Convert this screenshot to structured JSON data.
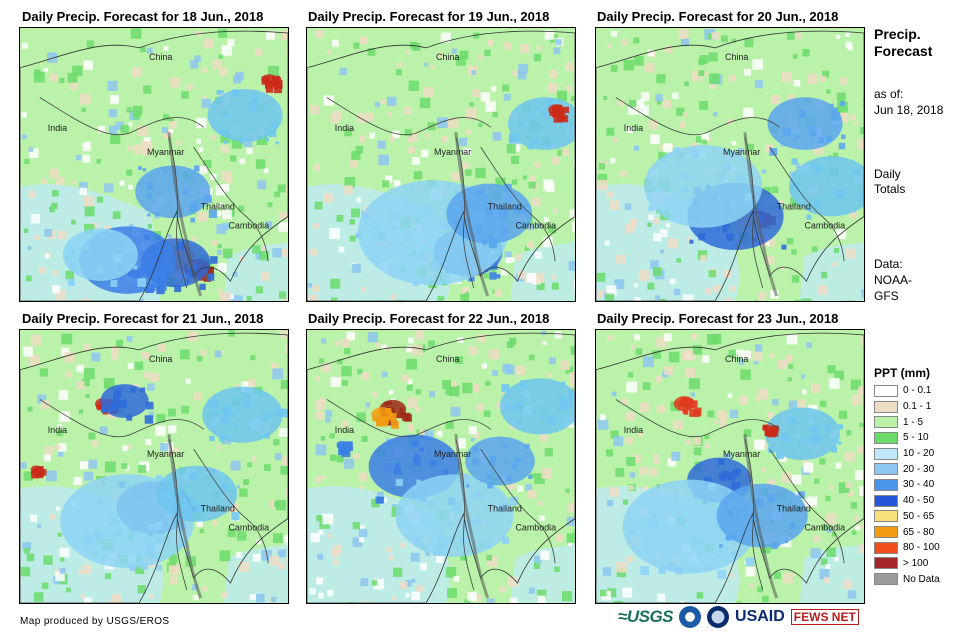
{
  "panels": [
    {
      "title": "Daily Precip. Forecast for 18 Jun., 2018",
      "blobs": [
        [
          0.66,
          0.88,
          "#a02a18",
          0.05
        ],
        [
          0.6,
          0.83,
          "#f39c12",
          0.05
        ],
        [
          0.58,
          0.86,
          "#2f6bd8",
          0.13
        ],
        [
          0.4,
          0.85,
          "#3c7fe6",
          0.18
        ],
        [
          0.3,
          0.83,
          "#8dd3f5",
          0.14
        ],
        [
          0.57,
          0.6,
          "#5aa6ee",
          0.14
        ],
        [
          0.84,
          0.32,
          "#6fc6f0",
          0.14
        ],
        [
          0.93,
          0.19,
          "#cc2a1a",
          0.03
        ]
      ]
    },
    {
      "title": "Daily Precip. Forecast for 19 Jun., 2018",
      "blobs": [
        [
          0.62,
          0.86,
          "#e03b1f",
          0.04
        ],
        [
          0.6,
          0.82,
          "#3c7fe6",
          0.13
        ],
        [
          0.47,
          0.75,
          "#8dd3f5",
          0.28
        ],
        [
          0.68,
          0.68,
          "#5aa6ee",
          0.16
        ],
        [
          0.89,
          0.35,
          "#6fc6f0",
          0.14
        ],
        [
          0.93,
          0.3,
          "#cc2a1a",
          0.03
        ]
      ]
    },
    {
      "title": "Daily Precip. Forecast for 20 Jun., 2018",
      "blobs": [
        [
          0.61,
          0.69,
          "#a02a18",
          0.03
        ],
        [
          0.56,
          0.7,
          "#f3d25c",
          0.03
        ],
        [
          0.52,
          0.69,
          "#2f6bd8",
          0.18
        ],
        [
          0.4,
          0.58,
          "#8dd3f5",
          0.22
        ],
        [
          0.78,
          0.35,
          "#5aa6ee",
          0.14
        ],
        [
          0.88,
          0.58,
          "#6fc6f0",
          0.16
        ]
      ]
    },
    {
      "title": "Daily Precip. Forecast for 21 Jun., 2018",
      "blobs": [
        [
          0.31,
          0.27,
          "#cc2a1a",
          0.03
        ],
        [
          0.39,
          0.26,
          "#2f6bd8",
          0.09
        ],
        [
          0.5,
          0.65,
          "#2f6bd8",
          0.14
        ],
        [
          0.4,
          0.7,
          "#8dd3f5",
          0.25
        ],
        [
          0.66,
          0.6,
          "#6fc6f0",
          0.15
        ],
        [
          0.83,
          0.31,
          "#6fc6f0",
          0.15
        ],
        [
          0.06,
          0.51,
          "#cc2a1a",
          0.02
        ]
      ]
    },
    {
      "title": "Daily Precip. Forecast for 22 Jun., 2018",
      "blobs": [
        [
          0.32,
          0.29,
          "#a02a18",
          0.05
        ],
        [
          0.28,
          0.31,
          "#f39c12",
          0.04
        ],
        [
          0.4,
          0.5,
          "#3c7fe6",
          0.17
        ],
        [
          0.55,
          0.68,
          "#8dd3f5",
          0.22
        ],
        [
          0.72,
          0.48,
          "#5aa6ee",
          0.13
        ],
        [
          0.87,
          0.28,
          "#6fc6f0",
          0.15
        ],
        [
          0.13,
          0.42,
          "#3c7fe6",
          0.02
        ]
      ]
    },
    {
      "title": "Daily Precip. Forecast for 23 Jun., 2018",
      "blobs": [
        [
          0.33,
          0.27,
          "#e03b1f",
          0.04
        ],
        [
          0.46,
          0.55,
          "#2f6bd8",
          0.12
        ],
        [
          0.35,
          0.72,
          "#8dd3f5",
          0.25
        ],
        [
          0.62,
          0.68,
          "#5aa6ee",
          0.17
        ],
        [
          0.77,
          0.38,
          "#6fc6f0",
          0.14
        ],
        [
          0.64,
          0.36,
          "#cc2a1a",
          0.02
        ]
      ]
    }
  ],
  "place_names": {
    "china": "China",
    "india": "India",
    "myanmar": "Myanmar",
    "thailand": "Thailand",
    "cambodia": "Cambodia"
  },
  "side": {
    "title": "Precip. Forecast",
    "asof_label": "as of:",
    "asof_date": "Jun 18, 2018",
    "daily": "Daily Totals",
    "data_label": "Data:",
    "data_source_1": "NOAA-",
    "data_source_2": "GFS"
  },
  "legend": {
    "title": "PPT (mm)",
    "items": [
      {
        "label": "0 - 0.1",
        "color": "#ffffff"
      },
      {
        "label": "0.1 - 1",
        "color": "#eeddc4"
      },
      {
        "label": "1 - 5",
        "color": "#b9f2a8"
      },
      {
        "label": "5 - 10",
        "color": "#6bdc6b"
      },
      {
        "label": "10 - 20",
        "color": "#bfe9fb"
      },
      {
        "label": "20 - 30",
        "color": "#8dc7f0"
      },
      {
        "label": "30 - 40",
        "color": "#4a94ea"
      },
      {
        "label": "40 - 50",
        "color": "#2556d8"
      },
      {
        "label": "50 - 65",
        "color": "#f7e07a"
      },
      {
        "label": "65 - 80",
        "color": "#f39c12"
      },
      {
        "label": "80 - 100",
        "color": "#f04e1c"
      },
      {
        "label": "> 100",
        "color": "#a4262c"
      },
      {
        "label": "No Data",
        "color": "#9a9a9a"
      }
    ]
  },
  "footer": {
    "credit": "Map produced by USGS/EROS",
    "logo_usgs": "≈USGS",
    "logo_usaid": "USAID",
    "logo_fews": "FEWS NET"
  }
}
